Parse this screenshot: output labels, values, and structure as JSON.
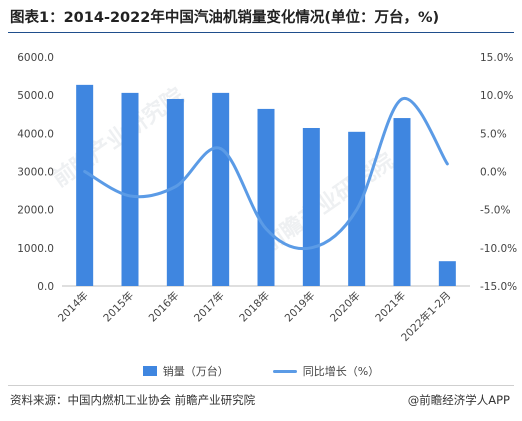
{
  "header": {
    "title": "图表1：2014-2022年中国汽油机销量变化情况(单位：万台，%)"
  },
  "footer": {
    "source": "资料来源：中国内燃机工业协会 前瞻产业研究院",
    "brand": "@前瞻经济学人APP"
  },
  "watermark": {
    "text": "前瞻产业研究院"
  },
  "colors": {
    "bar": "#3f86e0",
    "line": "#5b9be6",
    "axis": "#bfbfbf",
    "grid": "#e6e6e6"
  },
  "chart_data": {
    "type": "bar",
    "categories": [
      "2014年",
      "2015年",
      "2016年",
      "2017年",
      "2018年",
      "2019年",
      "2020年",
      "2021年",
      "2022年1-2月"
    ],
    "series": [
      {
        "name": "销量（万台）",
        "type": "bar",
        "axis": "left",
        "values": [
          5270,
          5060,
          4900,
          5060,
          4640,
          4140,
          4040,
          4400,
          650
        ]
      },
      {
        "name": "同比增长（%）",
        "type": "line",
        "axis": "right",
        "smooth": true,
        "values": [
          0.0,
          -3.2,
          -2.0,
          3.0,
          -7.5,
          -10.0,
          -5.0,
          9.5,
          1.0
        ]
      }
    ],
    "ylim_left": [
      0,
      6000
    ],
    "yticks_left": [
      "0.0",
      "1000.0",
      "2000.0",
      "3000.0",
      "4000.0",
      "5000.0",
      "6000.0"
    ],
    "ylim_right": [
      -15,
      15
    ],
    "yticks_right": [
      "-15.0%",
      "-10.0%",
      "-5.0%",
      "0.0%",
      "5.0%",
      "10.0%",
      "15.0%"
    ],
    "grid": false,
    "legend": "bottom"
  }
}
